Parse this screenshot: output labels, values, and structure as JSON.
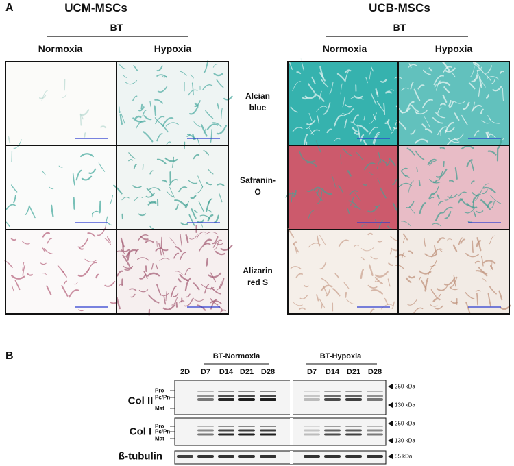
{
  "panel_a": {
    "label": "A",
    "groups": [
      {
        "title": "UCM-MSCs",
        "condition": "BT",
        "columns": [
          "Normoxia",
          "Hypoxia"
        ]
      },
      {
        "title": "UCB-MSCs",
        "condition": "BT",
        "columns": [
          "Normoxia",
          "Hypoxia"
        ]
      }
    ],
    "stains": [
      "Alcian blue",
      "Safranin-O",
      "Alizarin red S"
    ]
  },
  "panel_b": {
    "label": "B",
    "control_lane": "2D",
    "groups": [
      {
        "name": "BT-Normoxia",
        "lanes": [
          "D7",
          "D14",
          "D21",
          "D28"
        ]
      },
      {
        "name": "BT-Hypoxia",
        "lanes": [
          "D7",
          "D14",
          "D21",
          "D28"
        ]
      }
    ],
    "blots": [
      {
        "name": "Col II",
        "forms": [
          "Pro",
          "Pc/Pn",
          "Mat"
        ],
        "markers": [
          "250 kDa",
          "130 kDa"
        ]
      },
      {
        "name": "Col I",
        "forms": [
          "Pro",
          "Pc/Pn",
          "Mat"
        ],
        "markers": [
          "250 kDa",
          "130 kDa"
        ]
      },
      {
        "name": "ß-tubulin",
        "markers": [
          "55 kDa"
        ]
      }
    ]
  }
}
